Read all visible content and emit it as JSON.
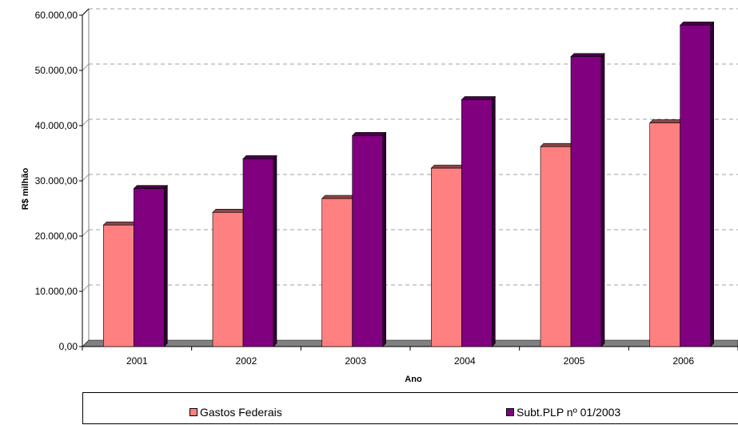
{
  "chart_data": {
    "type": "bar",
    "title": "",
    "xlabel": "Ano",
    "ylabel": "R$ milhão",
    "categories": [
      "2001",
      "2002",
      "2003",
      "2004",
      "2005",
      "2006"
    ],
    "series": [
      {
        "name": "Gastos Federais",
        "color": "#FF8080",
        "values": [
          22000,
          24300,
          26800,
          32300,
          36200,
          40500
        ]
      },
      {
        "name": "Subt.PLP nº 01/2003",
        "color": "#800080",
        "values": [
          28600,
          34000,
          38200,
          44700,
          52500,
          58200
        ]
      }
    ],
    "ylim": [
      0,
      60000
    ],
    "yticks": [
      "0,00",
      "10.000,00",
      "20.000,00",
      "30.000,00",
      "40.000,00",
      "50.000,00",
      "60.000,00"
    ],
    "grid": true,
    "legend_position": "bottom"
  }
}
